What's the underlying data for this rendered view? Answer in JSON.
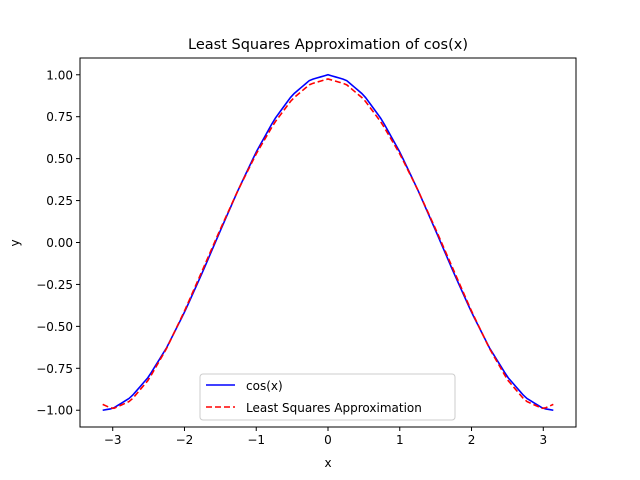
{
  "chart_data": {
    "type": "line",
    "title": "Least Squares Approximation of cos(x)",
    "xlabel": "x",
    "ylabel": "y",
    "xlim": [
      -3.456,
      3.456
    ],
    "ylim": [
      -1.1,
      1.1
    ],
    "xticks": [
      -3,
      -2,
      -1,
      0,
      1,
      2,
      3
    ],
    "xtick_labels": [
      "−3",
      "−2",
      "−1",
      "0",
      "1",
      "2",
      "3"
    ],
    "yticks": [
      1.0,
      0.75,
      0.5,
      0.25,
      0.0,
      -0.25,
      -0.5,
      -0.75,
      -1.0
    ],
    "ytick_labels": [
      "1.00",
      "0.75",
      "0.50",
      "0.25",
      "0.00",
      "−0.25",
      "−0.50",
      "−0.75",
      "−1.00"
    ],
    "grid": false,
    "legend_position": "lower center",
    "series": [
      {
        "name": "cos(x)",
        "color": "#0000ff",
        "linestyle": "solid",
        "x": [
          -3.14,
          -3.0,
          -2.75,
          -2.5,
          -2.25,
          -2.0,
          -1.75,
          -1.5,
          -1.25,
          -1.0,
          -0.75,
          -0.5,
          -0.25,
          0.0,
          0.25,
          0.5,
          0.75,
          1.0,
          1.25,
          1.5,
          1.75,
          2.0,
          2.25,
          2.5,
          2.75,
          3.0,
          3.14
        ],
        "y": [
          -1.0,
          -0.99,
          -0.924,
          -0.801,
          -0.628,
          -0.416,
          -0.178,
          0.071,
          0.315,
          0.54,
          0.732,
          0.878,
          0.969,
          1.0,
          0.969,
          0.878,
          0.732,
          0.54,
          0.315,
          0.071,
          -0.178,
          -0.416,
          -0.628,
          -0.801,
          -0.924,
          -0.99,
          -1.0
        ]
      },
      {
        "name": "Least Squares Approximation",
        "color": "#ff0000",
        "linestyle": "dashed",
        "x": [
          -3.14,
          -3.0,
          -2.75,
          -2.5,
          -2.25,
          -2.0,
          -1.75,
          -1.5,
          -1.25,
          -1.0,
          -0.75,
          -0.5,
          -0.25,
          0.0,
          0.25,
          0.5,
          0.75,
          1.0,
          1.25,
          1.5,
          1.75,
          2.0,
          2.25,
          2.5,
          2.75,
          3.0,
          3.14
        ],
        "y": [
          -0.965,
          -0.992,
          -0.944,
          -0.818,
          -0.632,
          -0.409,
          -0.165,
          0.08,
          0.315,
          0.529,
          0.711,
          0.854,
          0.944,
          0.975,
          0.944,
          0.854,
          0.711,
          0.529,
          0.315,
          0.08,
          -0.165,
          -0.409,
          -0.632,
          -0.818,
          -0.944,
          -0.992,
          -0.965
        ]
      }
    ]
  }
}
